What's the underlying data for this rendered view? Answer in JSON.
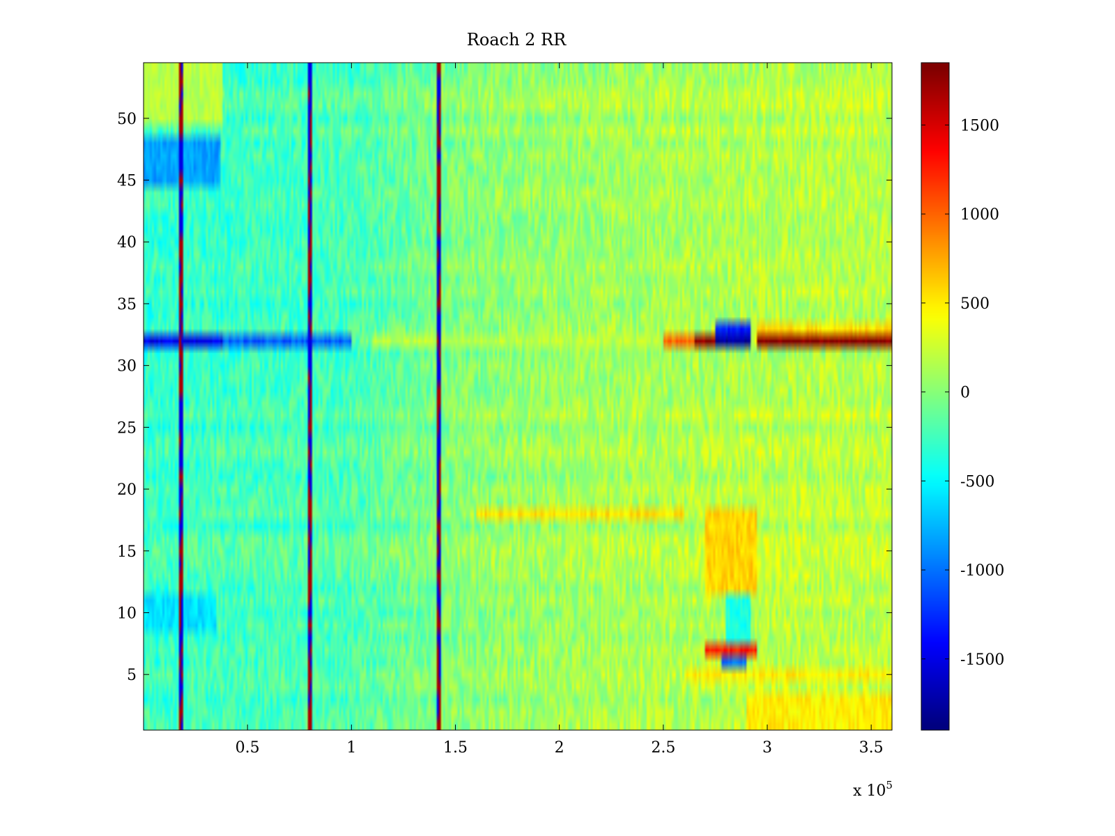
{
  "chart_data": {
    "type": "heatmap",
    "title": "Roach 2 RR",
    "xlabel": "",
    "ylabel": "",
    "x_scale_note": "x 10",
    "x_scale_exponent": "5",
    "xlim": [
      0,
      3.6
    ],
    "ylim": [
      0.5,
      54.5
    ],
    "rows": 54,
    "cols": 360,
    "x_ticks": [
      0.5,
      1,
      1.5,
      2,
      2.5,
      3,
      3.5
    ],
    "x_tick_labels": [
      "0.5",
      "1",
      "1.5",
      "2",
      "2.5",
      "3",
      "3.5"
    ],
    "y_ticks": [
      5,
      10,
      15,
      20,
      25,
      30,
      35,
      40,
      45,
      50
    ],
    "y_tick_labels": [
      "5",
      "10",
      "15",
      "20",
      "25",
      "30",
      "35",
      "40",
      "45",
      "50"
    ],
    "colorbar": {
      "colormap": "jet",
      "clim": [
        -1900,
        1850
      ],
      "ticks": [
        -1500,
        -1000,
        -500,
        0,
        500,
        1000,
        1500
      ],
      "tick_labels": [
        "-1500",
        "-1000",
        "-500",
        "0",
        "500",
        "1000",
        "1500"
      ]
    },
    "baseline": {
      "x_from": [
        0,
        1.0,
        1.5,
        2.0,
        2.5,
        3.0,
        3.6
      ],
      "value": [
        -280,
        -200,
        10,
        100,
        150,
        200,
        210
      ]
    },
    "vertical_stripes": [
      {
        "x": 0.18,
        "value": 1700
      },
      {
        "x": 0.8,
        "value": 1700
      },
      {
        "x": 1.42,
        "value": 1700
      }
    ],
    "features": [
      {
        "rows": [
          32,
          32
        ],
        "x": [
          0,
          0.38
        ],
        "value": -1500
      },
      {
        "rows": [
          32,
          32
        ],
        "x": [
          0.38,
          1.0
        ],
        "value": -1100
      },
      {
        "rows": [
          32,
          32
        ],
        "x": [
          1.1,
          2.5
        ],
        "value": 200
      },
      {
        "rows": [
          32,
          32
        ],
        "x": [
          2.5,
          2.65
        ],
        "value": 1000
      },
      {
        "rows": [
          32,
          32
        ],
        "x": [
          2.65,
          2.75
        ],
        "value": 1800
      },
      {
        "rows": [
          32,
          32
        ],
        "x": [
          2.75,
          2.92
        ],
        "value": -1800
      },
      {
        "rows": [
          33,
          33
        ],
        "x": [
          2.75,
          2.92
        ],
        "value": -1300
      },
      {
        "rows": [
          32,
          32
        ],
        "x": [
          2.95,
          3.6
        ],
        "value": 1850
      },
      {
        "rows": [
          33,
          33
        ],
        "x": [
          2.95,
          3.6
        ],
        "value": 550
      },
      {
        "rows": [
          45,
          48
        ],
        "x": [
          0,
          0.37
        ],
        "value": -850
      },
      {
        "rows": [
          50,
          54
        ],
        "x": [
          0,
          0.38
        ],
        "value": 180
      },
      {
        "rows": [
          7,
          7
        ],
        "x": [
          2.7,
          2.95
        ],
        "value": 1300
      },
      {
        "rows": [
          6,
          6
        ],
        "x": [
          2.78,
          2.9
        ],
        "value": -1000
      },
      {
        "rows": [
          5,
          5
        ],
        "x": [
          2.6,
          3.6
        ],
        "value": 500
      },
      {
        "rows": [
          8,
          11
        ],
        "x": [
          2.8,
          2.92
        ],
        "value": -400
      },
      {
        "rows": [
          12,
          18
        ],
        "x": [
          2.7,
          2.95
        ],
        "value": 600
      },
      {
        "rows": [
          18,
          18
        ],
        "x": [
          1.6,
          2.6
        ],
        "value": 550
      },
      {
        "rows": [
          1,
          3
        ],
        "x": [
          2.9,
          3.6
        ],
        "value": 500
      },
      {
        "rows": [
          9,
          11
        ],
        "x": [
          0,
          0.35
        ],
        "value": -600
      }
    ]
  }
}
